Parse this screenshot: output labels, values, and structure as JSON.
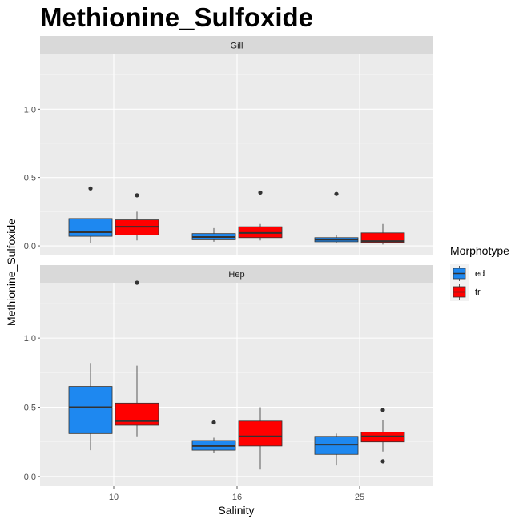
{
  "chart_data": {
    "type": "boxplot",
    "title": "Methionine_Sulfoxide",
    "xlabel": "Salinity",
    "ylabel": "Methionine_Sulfoxide",
    "categories": [
      "10",
      "16",
      "25"
    ],
    "yticks": [
      "0.0",
      "0.5",
      "1.0"
    ],
    "ylim": [
      -0.07,
      1.4
    ],
    "legend": {
      "title": "Morphotype",
      "position": "right",
      "entries": [
        {
          "name": "ed",
          "color": "#1e88f0"
        },
        {
          "name": "tr",
          "color": "#ff0000"
        }
      ]
    },
    "panels": [
      {
        "strip": "Gill",
        "groups": [
          {
            "category": "10",
            "series": "ed",
            "min": 0.02,
            "q1": 0.07,
            "median": 0.1,
            "q3": 0.2,
            "max": 0.2,
            "outliers": [
              0.42
            ]
          },
          {
            "category": "10",
            "series": "tr",
            "min": 0.04,
            "q1": 0.08,
            "median": 0.14,
            "q3": 0.19,
            "max": 0.25,
            "outliers": [
              0.37
            ]
          },
          {
            "category": "16",
            "series": "ed",
            "min": 0.03,
            "q1": 0.045,
            "median": 0.065,
            "q3": 0.09,
            "max": 0.13,
            "outliers": []
          },
          {
            "category": "16",
            "series": "tr",
            "min": 0.04,
            "q1": 0.06,
            "median": 0.095,
            "q3": 0.14,
            "max": 0.16,
            "outliers": [
              0.39
            ]
          },
          {
            "category": "25",
            "series": "ed",
            "min": 0.02,
            "q1": 0.03,
            "median": 0.045,
            "q3": 0.06,
            "max": 0.08,
            "outliers": [
              0.38
            ]
          },
          {
            "category": "25",
            "series": "tr",
            "min": 0.01,
            "q1": 0.025,
            "median": 0.035,
            "q3": 0.095,
            "max": 0.16,
            "outliers": []
          }
        ]
      },
      {
        "strip": "Hep",
        "groups": [
          {
            "category": "10",
            "series": "ed",
            "min": 0.19,
            "q1": 0.31,
            "median": 0.5,
            "q3": 0.65,
            "max": 0.82,
            "outliers": []
          },
          {
            "category": "10",
            "series": "tr",
            "min": 0.29,
            "q1": 0.37,
            "median": 0.4,
            "q3": 0.53,
            "max": 0.8,
            "outliers": [
              1.4
            ]
          },
          {
            "category": "16",
            "series": "ed",
            "min": 0.17,
            "q1": 0.19,
            "median": 0.22,
            "q3": 0.26,
            "max": 0.28,
            "outliers": [
              0.39
            ]
          },
          {
            "category": "16",
            "series": "tr",
            "min": 0.05,
            "q1": 0.22,
            "median": 0.29,
            "q3": 0.4,
            "max": 0.5,
            "outliers": []
          },
          {
            "category": "25",
            "series": "ed",
            "min": 0.08,
            "q1": 0.16,
            "median": 0.23,
            "q3": 0.29,
            "max": 0.31,
            "outliers": []
          },
          {
            "category": "25",
            "series": "tr",
            "min": 0.18,
            "q1": 0.25,
            "median": 0.29,
            "q3": 0.32,
            "max": 0.41,
            "outliers": [
              0.48,
              0.11
            ]
          }
        ]
      }
    ]
  }
}
